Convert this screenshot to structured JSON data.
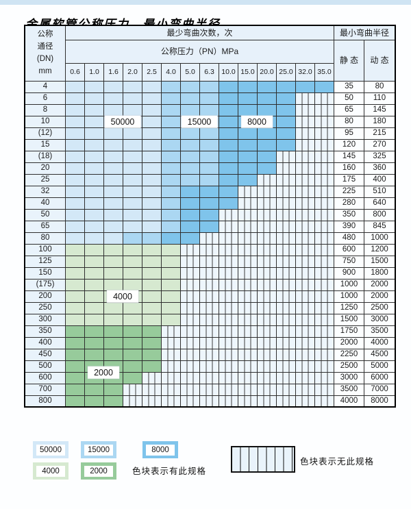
{
  "page": {
    "title": "金属软管公称压力、最小弯曲半径"
  },
  "table": {
    "corner": {
      "line1": "公称",
      "line2": "通径",
      "line3": "(DN)",
      "line4": "mm"
    },
    "top_header": "最少弯曲次数，次",
    "pressure_header": "公称压力（PN）MPa",
    "radius_header": "最小弯曲半径",
    "static_label": "静 态",
    "dynamic_label": "动 态",
    "pressures": [
      "0.6",
      "1.0",
      "1.6",
      "2.0",
      "2.5",
      "4.0",
      "5.0",
      "6.3",
      "10.0",
      "15.0",
      "20.0",
      "25.0",
      "32.0",
      "35.0"
    ],
    "rows": [
      {
        "dn": "4",
        "zones": [
          [
            "L",
            5
          ],
          [
            "M",
            3
          ],
          [
            "D",
            6
          ]
        ],
        "static": "35",
        "dynamic": "80"
      },
      {
        "dn": "6",
        "zones": [
          [
            "L",
            5
          ],
          [
            "M",
            3
          ],
          [
            "D",
            4
          ]
        ],
        "static": "50",
        "dynamic": "110"
      },
      {
        "dn": "8",
        "zones": [
          [
            "L",
            5
          ],
          [
            "M",
            3
          ],
          [
            "D",
            4
          ]
        ],
        "static": "65",
        "dynamic": "145"
      },
      {
        "dn": "10",
        "zones": [
          [
            "L",
            5
          ],
          [
            "M",
            3
          ],
          [
            "D",
            4
          ]
        ],
        "static": "80",
        "dynamic": "180"
      },
      {
        "dn": "(12)",
        "zones": [
          [
            "L",
            5
          ],
          [
            "M",
            3
          ],
          [
            "D",
            4
          ]
        ],
        "static": "95",
        "dynamic": "215"
      },
      {
        "dn": "15",
        "zones": [
          [
            "L",
            5
          ],
          [
            "M",
            3
          ],
          [
            "D",
            4
          ]
        ],
        "static": "120",
        "dynamic": "270"
      },
      {
        "dn": "(18)",
        "zones": [
          [
            "L",
            5
          ],
          [
            "M",
            3
          ],
          [
            "D",
            3
          ]
        ],
        "static": "145",
        "dynamic": "325"
      },
      {
        "dn": "20",
        "zones": [
          [
            "L",
            5
          ],
          [
            "M",
            3
          ],
          [
            "D",
            3
          ]
        ],
        "static": "160",
        "dynamic": "360"
      },
      {
        "dn": "25",
        "zones": [
          [
            "L",
            5
          ],
          [
            "M",
            3
          ],
          [
            "D",
            2
          ]
        ],
        "static": "175",
        "dynamic": "400"
      },
      {
        "dn": "32",
        "zones": [
          [
            "L",
            5
          ],
          [
            "M",
            1
          ],
          [
            "D",
            3
          ]
        ],
        "static": "225",
        "dynamic": "510"
      },
      {
        "dn": "40",
        "zones": [
          [
            "L",
            5
          ],
          [
            "M",
            1
          ],
          [
            "D",
            3
          ]
        ],
        "static": "280",
        "dynamic": "640"
      },
      {
        "dn": "50",
        "zones": [
          [
            "L",
            5
          ],
          [
            "M",
            1
          ],
          [
            "D",
            2
          ]
        ],
        "static": "350",
        "dynamic": "800"
      },
      {
        "dn": "65",
        "zones": [
          [
            "L",
            5
          ],
          [
            "M",
            1
          ],
          [
            "D",
            2
          ]
        ],
        "static": "390",
        "dynamic": "845"
      },
      {
        "dn": "80",
        "zones": [
          [
            "L",
            3
          ],
          [
            "M",
            2
          ],
          [
            "D",
            2
          ]
        ],
        "static": "480",
        "dynamic": "1000"
      },
      {
        "dn": "100",
        "zones": [
          [
            "GL",
            6
          ]
        ],
        "static": "600",
        "dynamic": "1200"
      },
      {
        "dn": "125",
        "zones": [
          [
            "GL",
            6
          ]
        ],
        "static": "750",
        "dynamic": "1500"
      },
      {
        "dn": "150",
        "zones": [
          [
            "GL",
            6
          ]
        ],
        "static": "900",
        "dynamic": "1800"
      },
      {
        "dn": "(175)",
        "zones": [
          [
            "GL",
            6
          ]
        ],
        "static": "1000",
        "dynamic": "2000"
      },
      {
        "dn": "200",
        "zones": [
          [
            "GL",
            6
          ]
        ],
        "static": "1000",
        "dynamic": "2000"
      },
      {
        "dn": "250",
        "zones": [
          [
            "GL",
            6
          ]
        ],
        "static": "1250",
        "dynamic": "2500"
      },
      {
        "dn": "300",
        "zones": [
          [
            "GL",
            6
          ]
        ],
        "static": "1500",
        "dynamic": "3000"
      },
      {
        "dn": "350",
        "zones": [
          [
            "GM",
            5
          ]
        ],
        "static": "1750",
        "dynamic": "3500"
      },
      {
        "dn": "400",
        "zones": [
          [
            "GM",
            5
          ]
        ],
        "static": "2000",
        "dynamic": "4000"
      },
      {
        "dn": "450",
        "zones": [
          [
            "GM",
            5
          ]
        ],
        "static": "2250",
        "dynamic": "4500"
      },
      {
        "dn": "500",
        "zones": [
          [
            "GM",
            5
          ]
        ],
        "static": "2500",
        "dynamic": "5000"
      },
      {
        "dn": "600",
        "zones": [
          [
            "GM",
            4
          ]
        ],
        "static": "3000",
        "dynamic": "6000"
      },
      {
        "dn": "700",
        "zones": [
          [
            "GM",
            3
          ]
        ],
        "static": "3500",
        "dynamic": "7000"
      },
      {
        "dn": "800",
        "zones": [
          [
            "GM",
            3
          ]
        ],
        "static": "4000",
        "dynamic": "8000"
      }
    ],
    "overlays": [
      {
        "text": "50000",
        "row": "10",
        "col": 2,
        "valign": "mid"
      },
      {
        "text": "15000",
        "row": "10",
        "col": 6,
        "valign": "mid"
      },
      {
        "text": "8000",
        "row": "10",
        "col": 9,
        "valign": "mid"
      },
      {
        "text": "4000",
        "row": "200",
        "col": 2,
        "valign": "mid"
      },
      {
        "text": "2000",
        "row": "600",
        "col": 1,
        "valign": "top"
      }
    ]
  },
  "legend": {
    "present_label": "色块表示有此规格",
    "absent_label": "色块表示无此规格",
    "items_row1": [
      {
        "value": "50000",
        "zone": "L"
      },
      {
        "value": "15000",
        "zone": "M"
      },
      {
        "value": "8000",
        "zone": "D"
      }
    ],
    "items_row2": [
      {
        "value": "4000",
        "zone": "GL"
      },
      {
        "value": "2000",
        "zone": "GM"
      }
    ]
  },
  "colors": {
    "L": "#d3e8f7",
    "M": "#abd7f2",
    "D": "#7fc4eb",
    "GL": "#d6e9d0",
    "GM": "#97cb9b",
    "stripe_bg": "#eef6fc",
    "grid": "#2e2e2e"
  }
}
